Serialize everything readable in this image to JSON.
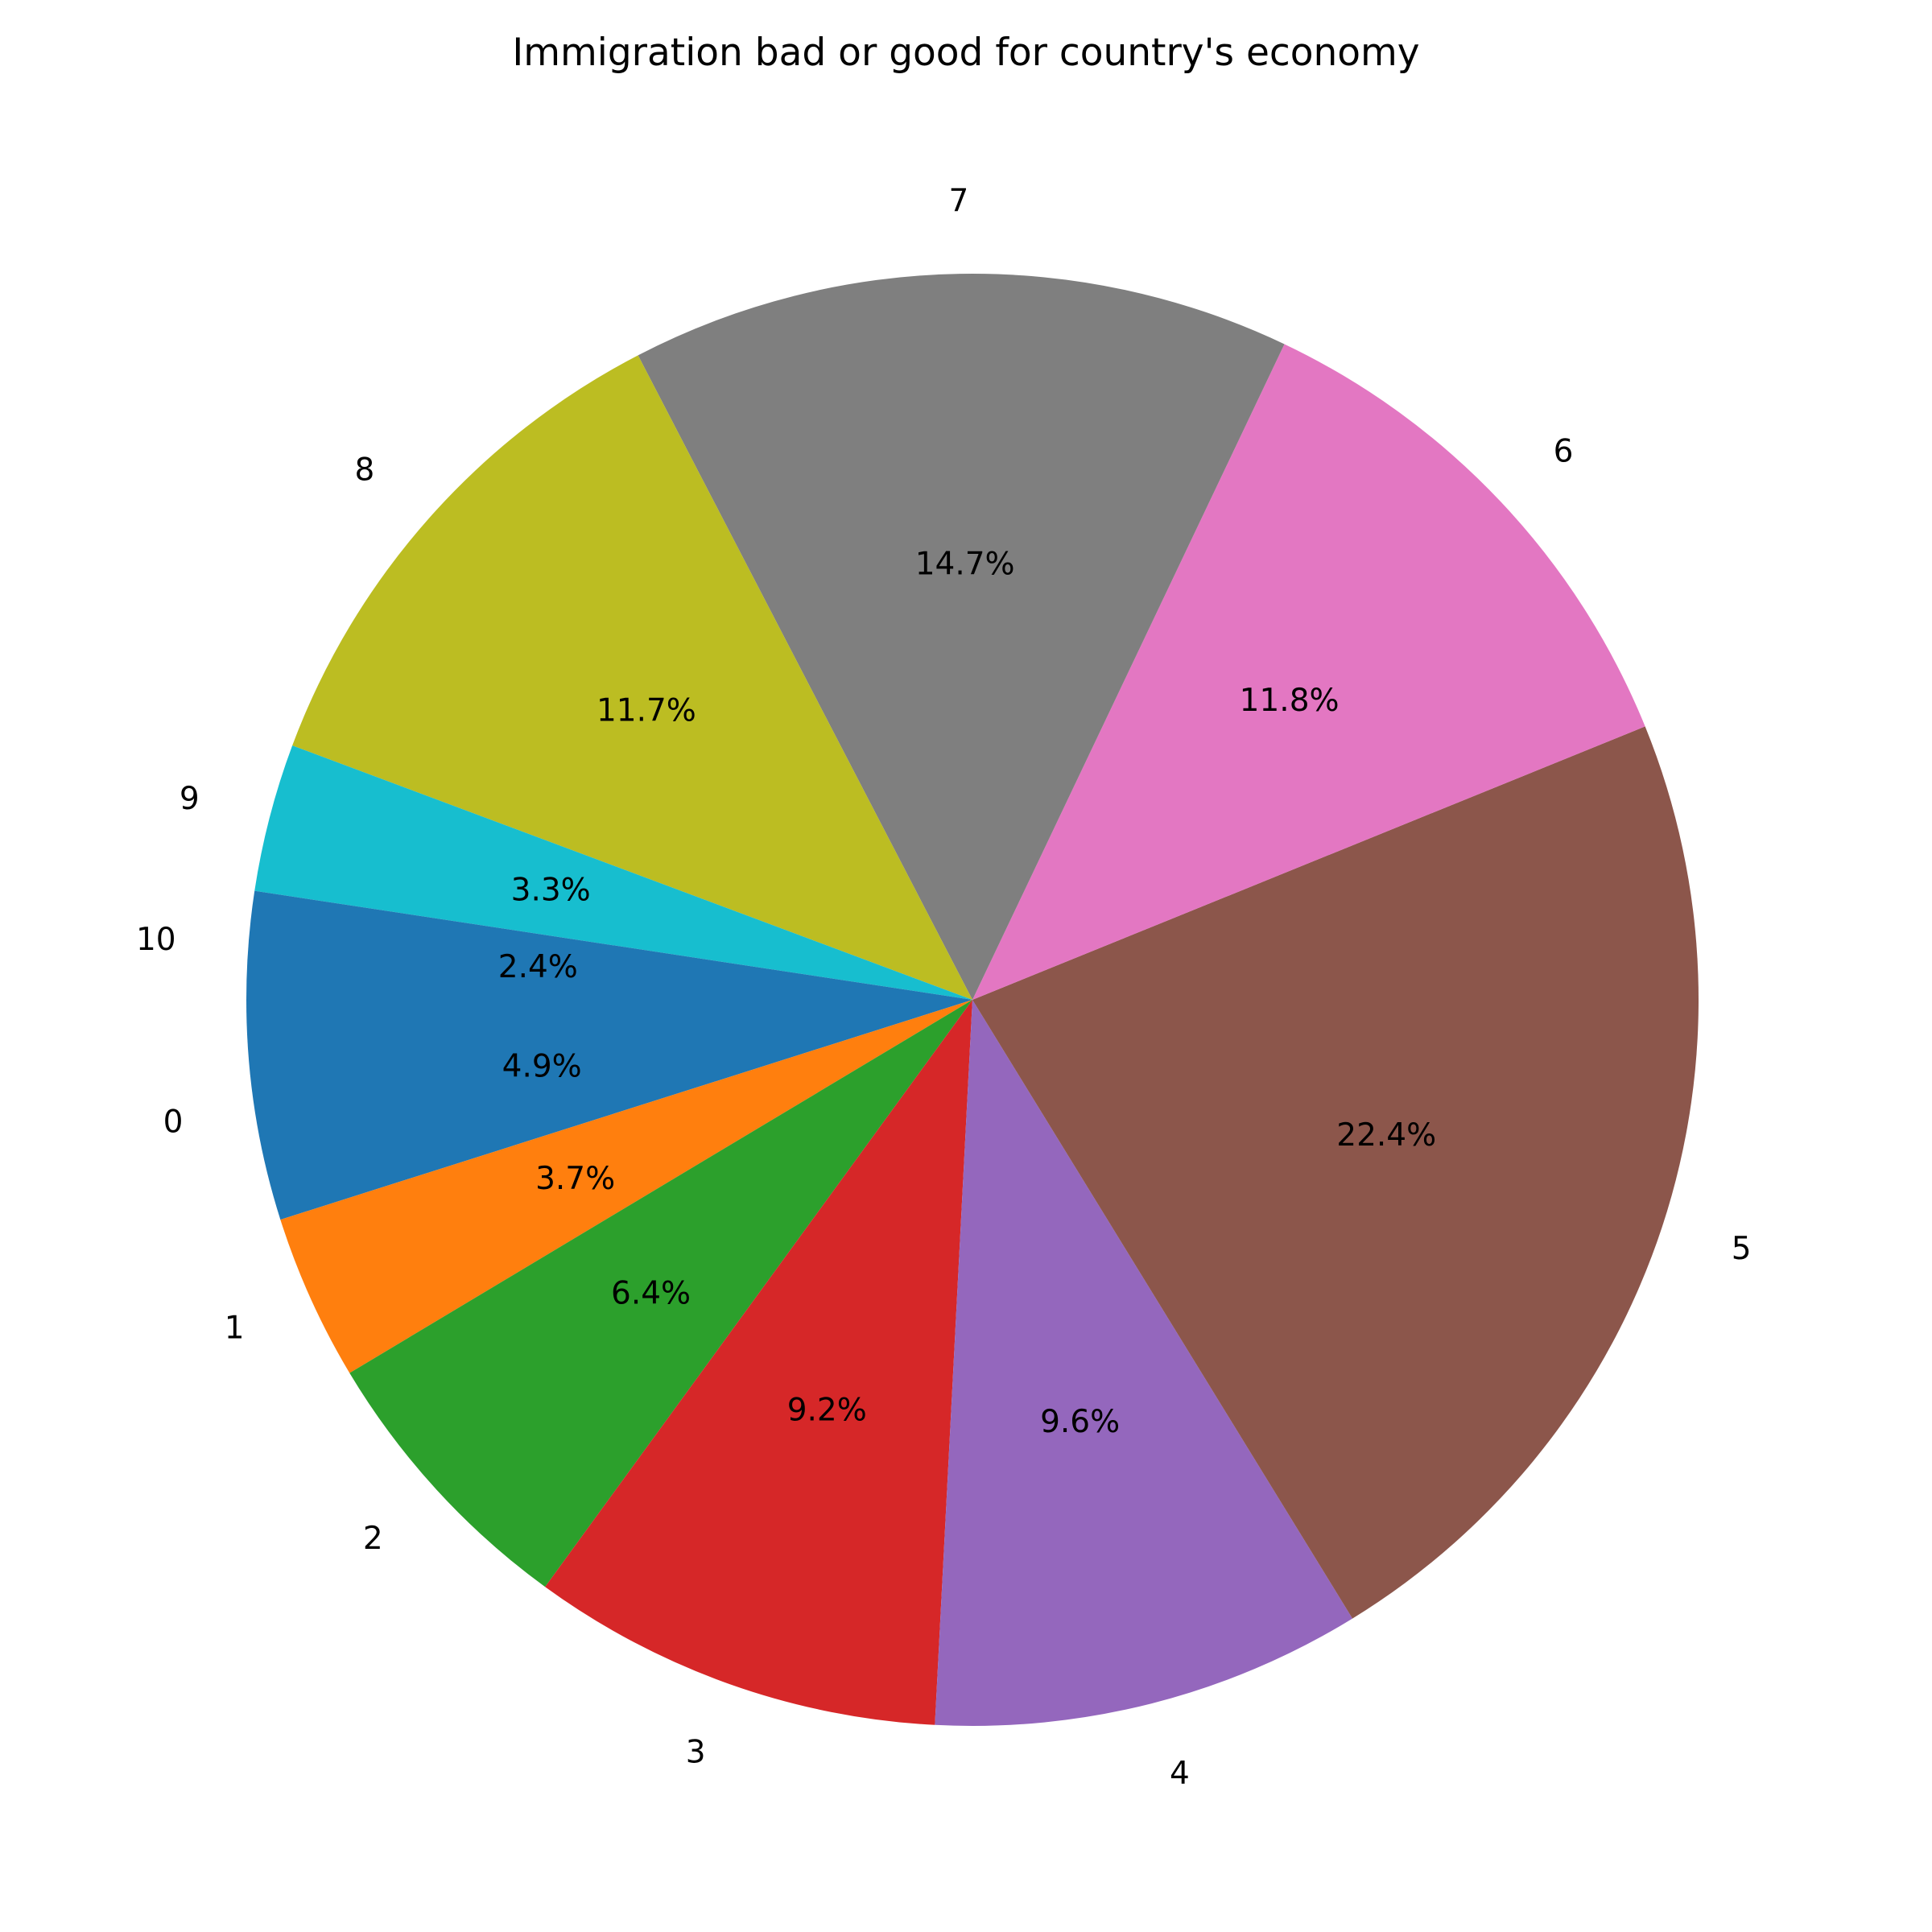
{
  "chart_data": {
    "type": "pie",
    "title": "Immigration bad or good for country's economy",
    "start_angle_deg": 180,
    "direction": "counterclockwise",
    "slices": [
      {
        "label": "0",
        "value": 4.9,
        "pct_label": "4.9%",
        "color": "#1f77b4"
      },
      {
        "label": "1",
        "value": 3.7,
        "pct_label": "3.7%",
        "color": "#ff7f0e"
      },
      {
        "label": "2",
        "value": 6.4,
        "pct_label": "6.4%",
        "color": "#2ca02c"
      },
      {
        "label": "3",
        "value": 9.2,
        "pct_label": "9.2%",
        "color": "#d62728"
      },
      {
        "label": "4",
        "value": 9.6,
        "pct_label": "9.6%",
        "color": "#9467bd"
      },
      {
        "label": "5",
        "value": 22.4,
        "pct_label": "22.4%",
        "color": "#8c564b"
      },
      {
        "label": "6",
        "value": 11.8,
        "pct_label": "11.8%",
        "color": "#e377c2"
      },
      {
        "label": "7",
        "value": 14.7,
        "pct_label": "14.7%",
        "color": "#7f7f7f"
      },
      {
        "label": "8",
        "value": 11.7,
        "pct_label": "11.7%",
        "color": "#bcbd22"
      },
      {
        "label": "9",
        "value": 3.3,
        "pct_label": "3.3%",
        "color": "#17becf"
      },
      {
        "label": "10",
        "value": 2.4,
        "pct_label": "2.4%",
        "color": "#1f77b4"
      }
    ]
  }
}
